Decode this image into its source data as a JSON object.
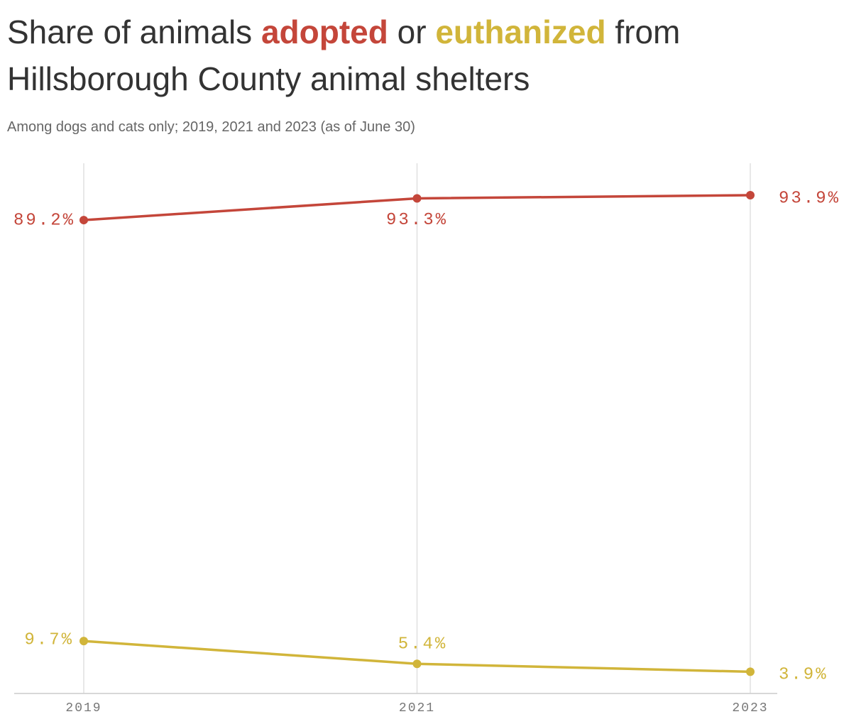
{
  "chart_data": {
    "type": "line",
    "title_start": "Share of animals",
    "title_middle": "or",
    "title_end": "from Hillsborough County animal shelters",
    "subtitle": "Among dogs and cats only; 2019, 2021 and 2023 (as of June 30)",
    "categories": [
      "2019",
      "2021",
      "2023"
    ],
    "series": [
      {
        "name": "adopted",
        "color": "#c4463a",
        "values": [
          89.2,
          93.3,
          93.9
        ],
        "value_labels": [
          "89.2%",
          "93.3%",
          "93.9%"
        ]
      },
      {
        "name": "euthanized",
        "color": "#d1b53a",
        "values": [
          9.7,
          5.4,
          3.9
        ],
        "value_labels": [
          "9.7%",
          "5.4%",
          "3.9%"
        ]
      }
    ],
    "ylim": [
      0,
      100
    ],
    "grid": true
  }
}
